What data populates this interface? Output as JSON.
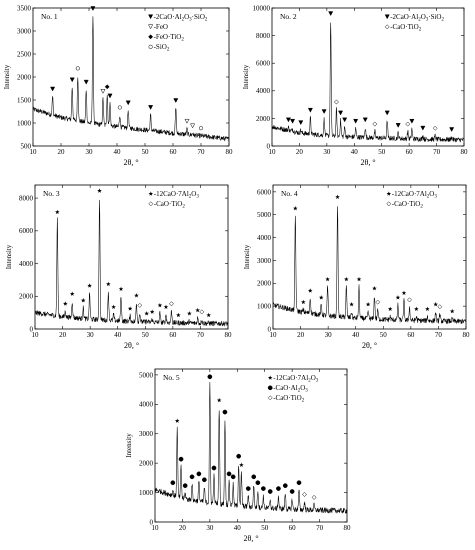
{
  "chart_data": [
    {
      "type": "line",
      "panel_label": "No. 1",
      "xlabel": "2θ, °",
      "ylabel": "Intensity",
      "xlim": [
        10,
        80
      ],
      "ylim": [
        500,
        3500
      ],
      "x_ticks": [
        10,
        20,
        30,
        40,
        50,
        60,
        70,
        80
      ],
      "y_ticks": [
        500,
        1000,
        1500,
        2000,
        2500,
        3000,
        3500
      ],
      "baseline": [
        [
          10,
          1300
        ],
        [
          20,
          1120
        ],
        [
          30,
          1000
        ],
        [
          40,
          920
        ],
        [
          50,
          850
        ],
        [
          60,
          780
        ],
        [
          70,
          720
        ],
        [
          80,
          650
        ]
      ],
      "peaks": [
        {
          "x": 17.0,
          "y": 1650,
          "phase": "gehlenite",
          "marker": "triangle-filled"
        },
        {
          "x": 24.0,
          "y": 1850,
          "phase": "gehlenite",
          "marker": "triangle-filled"
        },
        {
          "x": 26.0,
          "y": 2100,
          "phase": "SiO2",
          "marker": "circle-open"
        },
        {
          "x": 29.0,
          "y": 1800,
          "phase": "gehlenite",
          "marker": "triangle-filled"
        },
        {
          "x": 31.4,
          "y": 3400,
          "phase": "gehlenite",
          "marker": "triangle-filled"
        },
        {
          "x": 35.0,
          "y": 1600,
          "phase": "FeO",
          "marker": "triangle-open"
        },
        {
          "x": 36.5,
          "y": 1700,
          "phase": "FeO·TiO2",
          "marker": "diamond-filled"
        },
        {
          "x": 37.5,
          "y": 1500,
          "phase": "gehlenite",
          "marker": "triangle-filled"
        },
        {
          "x": 41.0,
          "y": 1250,
          "phase": "SiO2",
          "marker": "circle-open"
        },
        {
          "x": 44.0,
          "y": 1350,
          "phase": "gehlenite",
          "marker": "triangle-filled"
        },
        {
          "x": 52.0,
          "y": 1250,
          "phase": "gehlenite",
          "marker": "triangle-filled"
        },
        {
          "x": 61.0,
          "y": 1400,
          "phase": "gehlenite",
          "marker": "triangle-filled"
        },
        {
          "x": 65.0,
          "y": 950,
          "phase": "FeO",
          "marker": "triangle-open"
        },
        {
          "x": 67.0,
          "y": 850,
          "phase": "FeO",
          "marker": "triangle-open"
        },
        {
          "x": 70.0,
          "y": 800,
          "phase": "SiO2",
          "marker": "circle-open"
        }
      ],
      "legend": [
        {
          "marker": "triangle-filled",
          "label": "-2CaO·Al2O3·SiO2"
        },
        {
          "marker": "triangle-open",
          "label": "-FeO"
        },
        {
          "marker": "diamond-filled",
          "label": "-FeO·TiO2"
        },
        {
          "marker": "circle-open",
          "label": "-SiO2"
        }
      ],
      "legend_position": "top-right"
    },
    {
      "type": "line",
      "panel_label": "No. 2",
      "xlabel": "2θ, °",
      "ylabel": "Intensity",
      "xlim": [
        10,
        80
      ],
      "ylim": [
        0,
        10000
      ],
      "x_ticks": [
        10,
        20,
        30,
        40,
        50,
        60,
        70,
        80
      ],
      "y_ticks": [
        0,
        2000,
        4000,
        6000,
        8000,
        10000
      ],
      "baseline": [
        [
          10,
          1400
        ],
        [
          20,
          950
        ],
        [
          30,
          750
        ],
        [
          40,
          650
        ],
        [
          50,
          580
        ],
        [
          60,
          520
        ],
        [
          70,
          480
        ],
        [
          80,
          450
        ]
      ],
      "peaks": [
        {
          "x": 16.0,
          "y": 1600,
          "phase": "gehlenite",
          "marker": "triangle-filled"
        },
        {
          "x": 17.5,
          "y": 1500,
          "phase": "gehlenite",
          "marker": "triangle-filled"
        },
        {
          "x": 20.5,
          "y": 1400,
          "phase": "gehlenite",
          "marker": "triangle-filled"
        },
        {
          "x": 24.0,
          "y": 2300,
          "phase": "gehlenite",
          "marker": "triangle-filled"
        },
        {
          "x": 29.0,
          "y": 2200,
          "phase": "gehlenite",
          "marker": "triangle-filled"
        },
        {
          "x": 31.4,
          "y": 9300,
          "phase": "gehlenite",
          "marker": "triangle-filled"
        },
        {
          "x": 33.5,
          "y": 2900,
          "phase": "CaO·TiO2",
          "marker": "diamond-open"
        },
        {
          "x": 35.0,
          "y": 2100,
          "phase": "gehlenite",
          "marker": "triangle-filled"
        },
        {
          "x": 36.5,
          "y": 1600,
          "phase": "gehlenite",
          "marker": "triangle-filled"
        },
        {
          "x": 40.5,
          "y": 1500,
          "phase": "gehlenite",
          "marker": "triangle-filled"
        },
        {
          "x": 44.0,
          "y": 1600,
          "phase": "gehlenite",
          "marker": "triangle-filled"
        },
        {
          "x": 47.5,
          "y": 1300,
          "phase": "CaO·TiO2",
          "marker": "diamond-open"
        },
        {
          "x": 52.0,
          "y": 2100,
          "phase": "gehlenite",
          "marker": "triangle-filled"
        },
        {
          "x": 56.0,
          "y": 1200,
          "phase": "gehlenite",
          "marker": "triangle-filled"
        },
        {
          "x": 59.5,
          "y": 1300,
          "phase": "CaO·TiO2",
          "marker": "diamond-open"
        },
        {
          "x": 61.0,
          "y": 1500,
          "phase": "gehlenite",
          "marker": "triangle-filled"
        },
        {
          "x": 65.0,
          "y": 1000,
          "phase": "gehlenite",
          "marker": "triangle-filled"
        },
        {
          "x": 69.5,
          "y": 1000,
          "phase": "CaO·TiO2",
          "marker": "diamond-open"
        },
        {
          "x": 75.5,
          "y": 900,
          "phase": "gehlenite",
          "marker": "triangle-filled"
        }
      ],
      "legend": [
        {
          "marker": "triangle-filled",
          "label": "-2CaO·Al2O3·SiO2"
        },
        {
          "marker": "diamond-open",
          "label": "-CaO·TiO2"
        }
      ],
      "legend_position": "top-right"
    },
    {
      "type": "line",
      "panel_label": "No. 3",
      "xlabel": "2θ, °",
      "ylabel": "Intensity",
      "xlim": [
        10,
        80
      ],
      "ylim": [
        0,
        8800
      ],
      "x_ticks": [
        10,
        20,
        30,
        40,
        50,
        60,
        70,
        80
      ],
      "y_ticks": [
        0,
        2000,
        4000,
        6000,
        8000
      ],
      "baseline": [
        [
          10,
          1000
        ],
        [
          20,
          750
        ],
        [
          30,
          600
        ],
        [
          40,
          500
        ],
        [
          50,
          430
        ],
        [
          60,
          380
        ],
        [
          70,
          350
        ],
        [
          80,
          330
        ]
      ],
      "peaks": [
        {
          "x": 18.1,
          "y": 6900,
          "phase": "12CaO·7Al2O3",
          "marker": "star"
        },
        {
          "x": 21.0,
          "y": 1300,
          "phase": "12CaO·7Al2O3",
          "marker": "star"
        },
        {
          "x": 23.5,
          "y": 1900,
          "phase": "12CaO·7Al2O3",
          "marker": "star"
        },
        {
          "x": 27.5,
          "y": 1500,
          "phase": "12CaO·7Al2O3",
          "marker": "star"
        },
        {
          "x": 29.8,
          "y": 2400,
          "phase": "12CaO·7Al2O3",
          "marker": "star"
        },
        {
          "x": 33.4,
          "y": 8200,
          "phase": "12CaO·7Al2O3",
          "marker": "star"
        },
        {
          "x": 36.6,
          "y": 2500,
          "phase": "12CaO·7Al2O3",
          "marker": "star"
        },
        {
          "x": 38.5,
          "y": 1100,
          "phase": "12CaO·7Al2O3",
          "marker": "star"
        },
        {
          "x": 41.2,
          "y": 2200,
          "phase": "12CaO·7Al2O3",
          "marker": "star"
        },
        {
          "x": 44.5,
          "y": 1000,
          "phase": "12CaO·7Al2O3",
          "marker": "star"
        },
        {
          "x": 46.8,
          "y": 1800,
          "phase": "12CaO·7Al2O3",
          "marker": "star"
        },
        {
          "x": 48.0,
          "y": 1200,
          "phase": "CaO·TiO2",
          "marker": "diamond-open"
        },
        {
          "x": 50.5,
          "y": 700,
          "phase": "12CaO·7Al2O3",
          "marker": "star"
        },
        {
          "x": 52.5,
          "y": 800,
          "phase": "12CaO·7Al2O3",
          "marker": "star"
        },
        {
          "x": 55.3,
          "y": 1200,
          "phase": "12CaO·7Al2O3",
          "marker": "star"
        },
        {
          "x": 57.5,
          "y": 1100,
          "phase": "12CaO·7Al2O3",
          "marker": "star"
        },
        {
          "x": 59.5,
          "y": 1300,
          "phase": "CaO·TiO2",
          "marker": "diamond-open"
        },
        {
          "x": 62.0,
          "y": 600,
          "phase": "12CaO·7Al2O3",
          "marker": "star"
        },
        {
          "x": 66.0,
          "y": 700,
          "phase": "12CaO·7Al2O3",
          "marker": "star"
        },
        {
          "x": 69.0,
          "y": 900,
          "phase": "12CaO·7Al2O3",
          "marker": "star"
        },
        {
          "x": 70.5,
          "y": 800,
          "phase": "CaO·TiO2",
          "marker": "diamond-open"
        },
        {
          "x": 73.0,
          "y": 600,
          "phase": "12CaO·7Al2O3",
          "marker": "star"
        }
      ],
      "legend": [
        {
          "marker": "star",
          "label": "-12CaO·7Al2O3"
        },
        {
          "marker": "diamond-open",
          "label": "-CaO·TiO2"
        }
      ],
      "legend_position": "top-right"
    },
    {
      "type": "line",
      "panel_label": "No. 4",
      "xlabel": "2θ, °",
      "ylabel": "Intensity",
      "xlim": [
        10,
        80
      ],
      "ylim": [
        0,
        6300
      ],
      "x_ticks": [
        10,
        20,
        30,
        40,
        50,
        60,
        70,
        80
      ],
      "y_ticks": [
        0,
        1000,
        2000,
        3000,
        4000,
        5000,
        6000
      ],
      "baseline": [
        [
          10,
          1050
        ],
        [
          20,
          750
        ],
        [
          30,
          580
        ],
        [
          40,
          480
        ],
        [
          50,
          420
        ],
        [
          60,
          380
        ],
        [
          70,
          350
        ],
        [
          80,
          330
        ]
      ],
      "peaks": [
        {
          "x": 18.1,
          "y": 5100,
          "phase": "12CaO·7Al2O3",
          "marker": "star"
        },
        {
          "x": 21.0,
          "y": 1000,
          "phase": "12CaO·7Al2O3",
          "marker": "star"
        },
        {
          "x": 23.5,
          "y": 1500,
          "phase": "12CaO·7Al2O3",
          "marker": "star"
        },
        {
          "x": 27.5,
          "y": 1200,
          "phase": "12CaO·7Al2O3",
          "marker": "star"
        },
        {
          "x": 29.8,
          "y": 2000,
          "phase": "12CaO·7Al2O3",
          "marker": "star"
        },
        {
          "x": 33.4,
          "y": 5600,
          "phase": "12CaO·7Al2O3",
          "marker": "star"
        },
        {
          "x": 36.6,
          "y": 2000,
          "phase": "12CaO·7Al2O3",
          "marker": "star"
        },
        {
          "x": 38.5,
          "y": 900,
          "phase": "12CaO·7Al2O3",
          "marker": "star"
        },
        {
          "x": 41.2,
          "y": 2000,
          "phase": "12CaO·7Al2O3",
          "marker": "star"
        },
        {
          "x": 44.5,
          "y": 900,
          "phase": "12CaO·7Al2O3",
          "marker": "star"
        },
        {
          "x": 46.8,
          "y": 1600,
          "phase": "12CaO·7Al2O3",
          "marker": "star"
        },
        {
          "x": 48.0,
          "y": 1000,
          "phase": "CaO·TiO2",
          "marker": "diamond-open"
        },
        {
          "x": 52.5,
          "y": 700,
          "phase": "12CaO·7Al2O3",
          "marker": "star"
        },
        {
          "x": 55.3,
          "y": 1200,
          "phase": "12CaO·7Al2O3",
          "marker": "star"
        },
        {
          "x": 57.5,
          "y": 1400,
          "phase": "12CaO·7Al2O3",
          "marker": "star"
        },
        {
          "x": 59.5,
          "y": 1100,
          "phase": "CaO·TiO2",
          "marker": "diamond-open"
        },
        {
          "x": 62.0,
          "y": 700,
          "phase": "12CaO·7Al2O3",
          "marker": "star"
        },
        {
          "x": 66.0,
          "y": 700,
          "phase": "12CaO·7Al2O3",
          "marker": "star"
        },
        {
          "x": 69.0,
          "y": 900,
          "phase": "12CaO·7Al2O3",
          "marker": "star"
        },
        {
          "x": 70.5,
          "y": 800,
          "phase": "CaO·TiO2",
          "marker": "diamond-open"
        },
        {
          "x": 75.0,
          "y": 600,
          "phase": "12CaO·7Al2O3",
          "marker": "star"
        }
      ],
      "legend": [
        {
          "marker": "star",
          "label": "-12CaO·7Al2O3"
        },
        {
          "marker": "diamond-open",
          "label": "-CaO·TiO2"
        }
      ],
      "legend_position": "top-right"
    },
    {
      "type": "line",
      "panel_label": "No. 5",
      "xlabel": "2θ, °",
      "ylabel": "Intensity",
      "xlim": [
        10,
        80
      ],
      "ylim": [
        0,
        5200
      ],
      "x_ticks": [
        10,
        20,
        30,
        40,
        50,
        60,
        70,
        80
      ],
      "y_ticks": [
        0,
        1000,
        2000,
        3000,
        4000,
        5000
      ],
      "baseline": [
        [
          10,
          1100
        ],
        [
          20,
          800
        ],
        [
          30,
          650
        ],
        [
          40,
          550
        ],
        [
          50,
          480
        ],
        [
          60,
          430
        ],
        [
          70,
          400
        ],
        [
          80,
          380
        ]
      ],
      "peaks": [
        {
          "x": 16.5,
          "y": 1200,
          "phase": "CaO·Al2O3",
          "marker": "circle-filled"
        },
        {
          "x": 18.1,
          "y": 3300,
          "phase": "12CaO·7Al2O3",
          "marker": "star"
        },
        {
          "x": 19.5,
          "y": 2000,
          "phase": "CaO·Al2O3",
          "marker": "circle-filled"
        },
        {
          "x": 21.0,
          "y": 1100,
          "phase": "CaO·Al2O3",
          "marker": "circle-filled"
        },
        {
          "x": 23.5,
          "y": 1400,
          "phase": "CaO·Al2O3",
          "marker": "circle-filled"
        },
        {
          "x": 26.0,
          "y": 1500,
          "phase": "CaO·Al2O3",
          "marker": "circle-filled"
        },
        {
          "x": 28.0,
          "y": 1300,
          "phase": "CaO·Al2O3",
          "marker": "circle-filled"
        },
        {
          "x": 30.0,
          "y": 4800,
          "phase": "CaO·Al2O3",
          "marker": "circle-filled"
        },
        {
          "x": 31.5,
          "y": 1700,
          "phase": "CaO·Al2O3",
          "marker": "circle-filled"
        },
        {
          "x": 33.4,
          "y": 4000,
          "phase": "12CaO·7Al2O3",
          "marker": "star"
        },
        {
          "x": 35.5,
          "y": 3600,
          "phase": "CaO·Al2O3",
          "marker": "circle-filled"
        },
        {
          "x": 37.0,
          "y": 1500,
          "phase": "CaO·Al2O3",
          "marker": "circle-filled"
        },
        {
          "x": 38.5,
          "y": 1400,
          "phase": "CaO·Al2O3",
          "marker": "circle-filled"
        },
        {
          "x": 40.5,
          "y": 2100,
          "phase": "CaO·Al2O3",
          "marker": "circle-filled"
        },
        {
          "x": 41.5,
          "y": 1800,
          "phase": "12CaO·7Al2O3",
          "marker": "star"
        },
        {
          "x": 44.0,
          "y": 1000,
          "phase": "CaO·Al2O3",
          "marker": "circle-filled"
        },
        {
          "x": 46.0,
          "y": 1400,
          "phase": "CaO·Al2O3",
          "marker": "circle-filled"
        },
        {
          "x": 47.5,
          "y": 1200,
          "phase": "CaO·Al2O3",
          "marker": "circle-filled"
        },
        {
          "x": 49.5,
          "y": 1000,
          "phase": "CaO·Al2O3",
          "marker": "circle-filled"
        },
        {
          "x": 52.0,
          "y": 900,
          "phase": "CaO·Al2O3",
          "marker": "circle-filled"
        },
        {
          "x": 55.0,
          "y": 1000,
          "phase": "CaO·Al2O3",
          "marker": "circle-filled"
        },
        {
          "x": 57.5,
          "y": 1100,
          "phase": "CaO·Al2O3",
          "marker": "circle-filled"
        },
        {
          "x": 60.0,
          "y": 900,
          "phase": "CaO·Al2O3",
          "marker": "circle-filled"
        },
        {
          "x": 62.5,
          "y": 1200,
          "phase": "CaO·Al2O3",
          "marker": "circle-filled"
        },
        {
          "x": 64.5,
          "y": 800,
          "phase": "CaO·TiO2",
          "marker": "diamond-open"
        },
        {
          "x": 68.0,
          "y": 700,
          "phase": "CaO·TiO2",
          "marker": "diamond-open"
        }
      ],
      "legend": [
        {
          "marker": "star",
          "label": "-12CaO·7Al2O3"
        },
        {
          "marker": "circle-filled",
          "label": "-CaO·Al2O3"
        },
        {
          "marker": "diamond-open",
          "label": "-CaO·TiO2"
        }
      ],
      "legend_position": "top-right"
    }
  ]
}
